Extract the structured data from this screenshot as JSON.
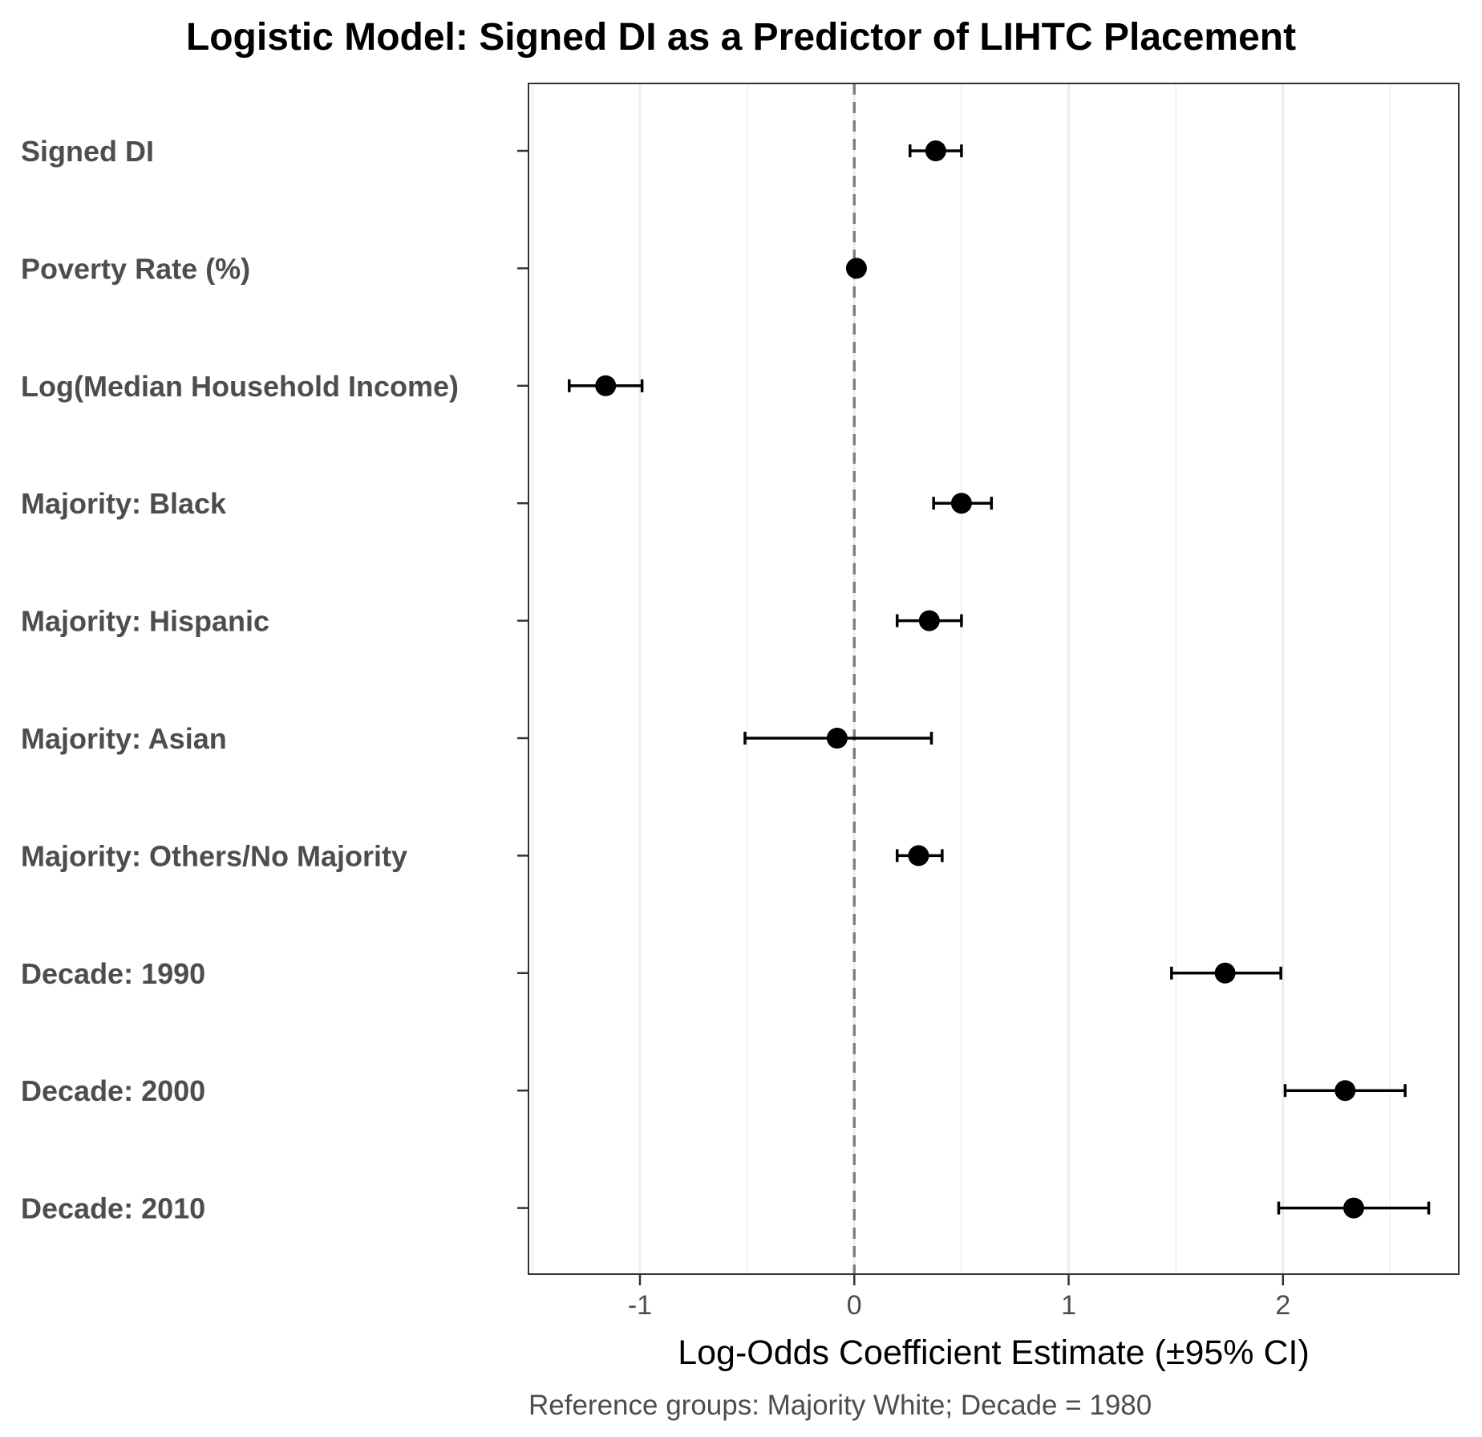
{
  "chart_data": {
    "type": "scatter",
    "title": "Logistic Model: Signed DI as a Predictor of LIHTC Placement",
    "xlabel": "Log-Odds Coefficient Estimate (±95% CI)",
    "ylabel": "",
    "caption": "Reference groups: Majority White; Decade = 1980",
    "xlim": [
      -1.52,
      2.82
    ],
    "x_ticks": [
      -1,
      0,
      1,
      2
    ],
    "x_tick_labels": [
      "-1",
      "0",
      "1",
      "2"
    ],
    "grid": true,
    "reference_line": 0,
    "colors": {
      "point": "#000000",
      "reference_line": "#808080",
      "grid": "#ebebeb",
      "panel_border": "#333333"
    },
    "categories": [
      "Signed DI",
      "Poverty Rate (%)",
      "Log(Median Household Income)",
      "Majority: Black",
      "Majority: Hispanic",
      "Majority: Asian",
      "Majority: Others/No Majority",
      "Decade: 1990",
      "Decade: 2000",
      "Decade: 2010"
    ],
    "series": [
      {
        "estimate": [
          0.38,
          0.01,
          -1.16,
          0.5,
          0.35,
          -0.08,
          0.3,
          1.73,
          2.29,
          2.33
        ],
        "ci_low": [
          0.26,
          0.0,
          -1.33,
          0.37,
          0.2,
          -0.51,
          0.2,
          1.48,
          2.01,
          1.98
        ],
        "ci_high": [
          0.5,
          0.02,
          -0.99,
          0.64,
          0.5,
          0.36,
          0.41,
          1.99,
          2.57,
          2.68
        ]
      }
    ]
  }
}
